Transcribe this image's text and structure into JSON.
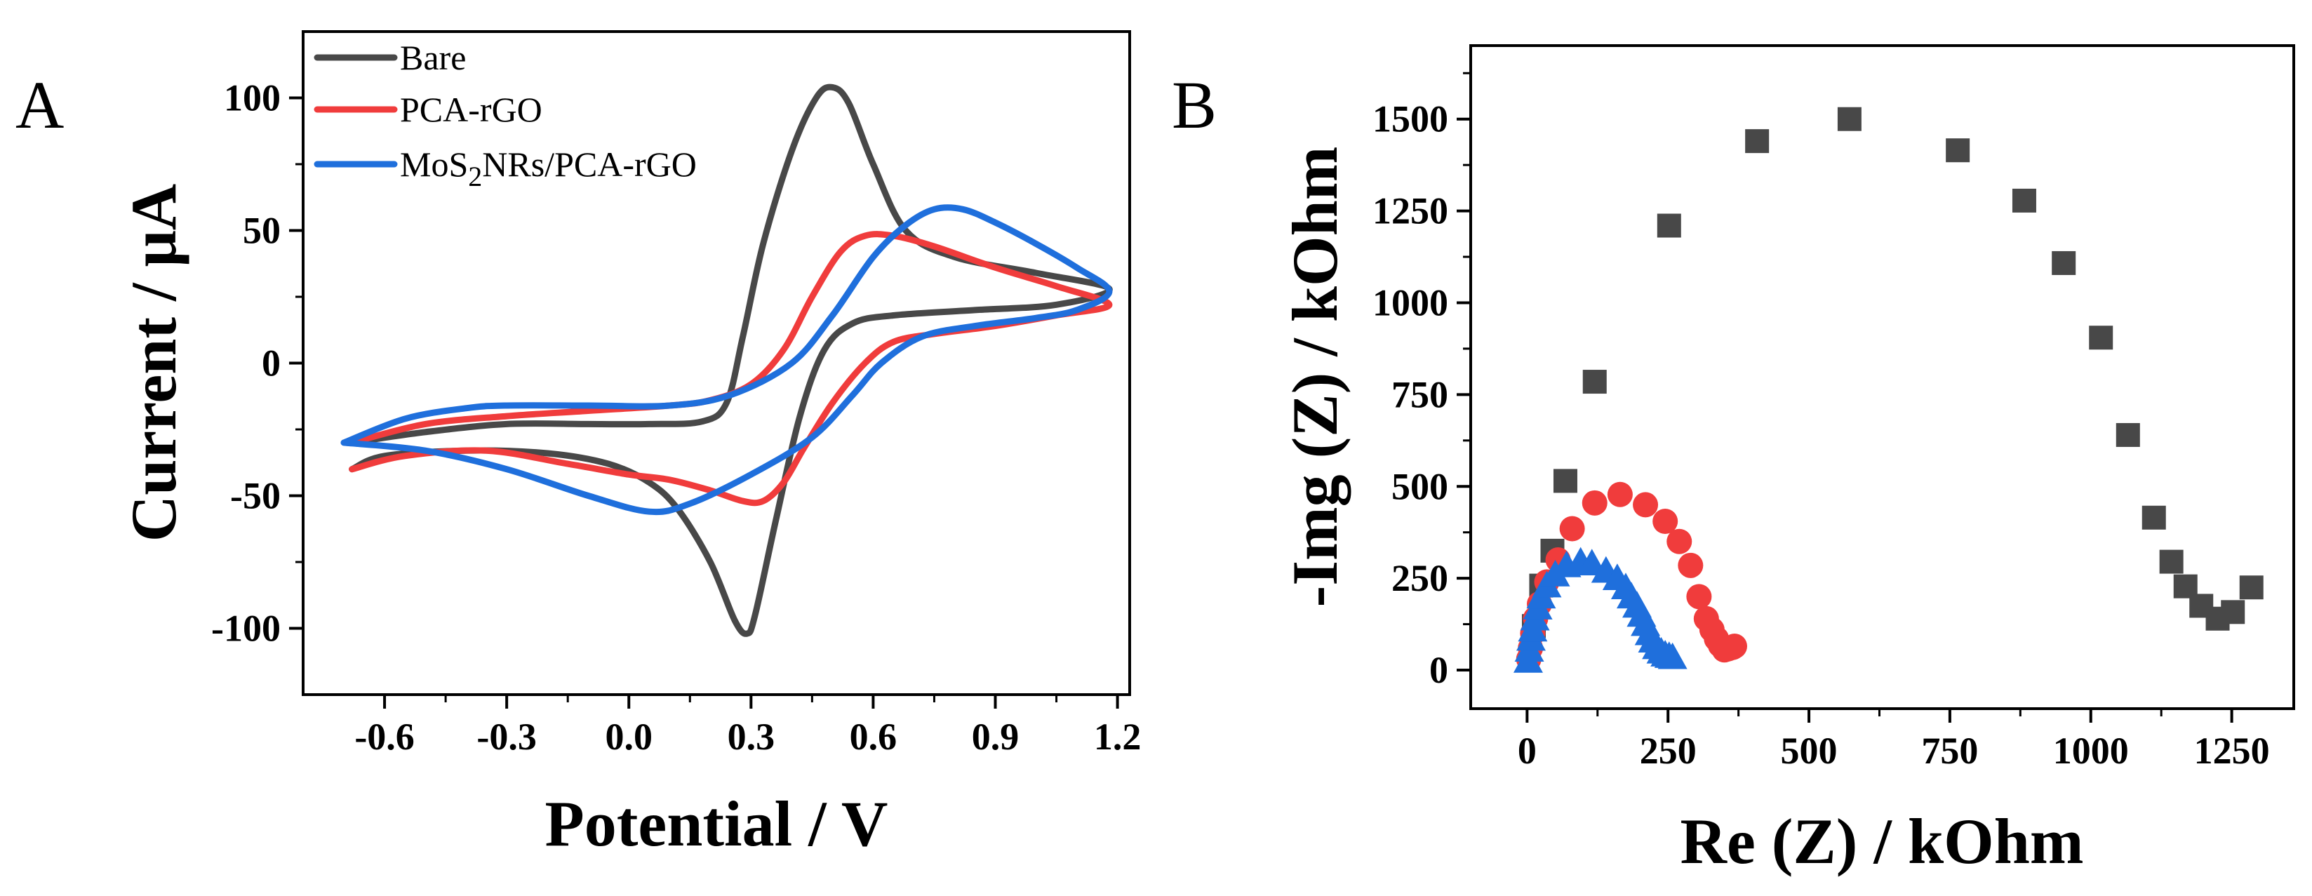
{
  "colors": {
    "bare": "#484848",
    "pca": "#f03c3c",
    "mos2": "#1f6fdc",
    "axis": "#000000"
  },
  "panels": {
    "a": {
      "label": "A"
    },
    "b": {
      "label": "B"
    }
  },
  "chart_data": [
    {
      "type": "line",
      "panel": "A",
      "title": "",
      "xlabel": "Potential / V",
      "ylabel": "Current / μA",
      "xlim": [
        -0.8,
        1.23
      ],
      "ylim": [
        -125,
        125
      ],
      "xticks": [
        -0.6,
        -0.3,
        0.0,
        0.3,
        0.6,
        0.9,
        1.2
      ],
      "xtick_labels": [
        "-0.6",
        "-0.3",
        "0.0",
        "0.3",
        "0.6",
        "0.9",
        "1.2"
      ],
      "yticks": [
        -100,
        -50,
        0,
        50,
        100
      ],
      "ytick_labels": [
        "-100",
        "-50",
        "0",
        "50",
        "100"
      ],
      "legend_position": "top-left",
      "legend": {
        "bare": "Bare",
        "pca": "PCA-rGO",
        "mos2_prefix": "MoS",
        "mos2_sub": "2",
        "mos2_suffix": "NRs/PCA-rGO"
      },
      "series": [
        {
          "name": "Bare",
          "color": "#484848",
          "x": [
            -0.68,
            -0.5,
            -0.3,
            -0.1,
            0.05,
            0.18,
            0.24,
            0.28,
            0.33,
            0.4,
            0.46,
            0.5,
            0.54,
            0.6,
            0.68,
            0.8,
            1.0,
            1.18,
            1.05,
            0.85,
            0.65,
            0.55,
            0.48,
            0.42,
            0.36,
            0.31,
            0.29,
            0.26,
            0.2,
            0.12,
            0.05,
            -0.05,
            -0.2,
            -0.4,
            -0.6,
            -0.68
          ],
          "y": [
            -30,
            -26,
            -23,
            -23,
            -23,
            -22,
            -15,
            10,
            45,
            80,
            100,
            104,
            98,
            75,
            50,
            40,
            34,
            28,
            22,
            20,
            18,
            15,
            5,
            -20,
            -60,
            -95,
            -102,
            -97,
            -75,
            -55,
            -45,
            -38,
            -34,
            -33,
            -35,
            -40
          ]
        },
        {
          "name": "PCA-rGO",
          "color": "#f03c3c",
          "x": [
            -0.68,
            -0.5,
            -0.3,
            -0.1,
            0.1,
            0.2,
            0.3,
            0.38,
            0.45,
            0.52,
            0.58,
            0.65,
            0.75,
            0.9,
            1.05,
            1.18,
            1.05,
            0.9,
            0.75,
            0.65,
            0.58,
            0.5,
            0.43,
            0.38,
            0.33,
            0.28,
            0.2,
            0.1,
            0.0,
            -0.15,
            -0.35,
            -0.55,
            -0.68
          ],
          "y": [
            -30,
            -23,
            -20,
            -18,
            -16,
            -14,
            -8,
            5,
            25,
            42,
            48,
            48,
            44,
            36,
            29,
            22,
            18,
            14,
            11,
            8,
            0,
            -15,
            -32,
            -45,
            -52,
            -52,
            -48,
            -44,
            -42,
            -38,
            -33,
            -35,
            -40
          ]
        },
        {
          "name": "MoS2NRs/PCA-rGO",
          "color": "#1f6fdc",
          "x": [
            -0.7,
            -0.55,
            -0.4,
            -0.3,
            -0.1,
            0.1,
            0.25,
            0.4,
            0.5,
            0.6,
            0.68,
            0.75,
            0.82,
            0.9,
            1.0,
            1.1,
            1.18,
            1.1,
            1.0,
            0.85,
            0.72,
            0.62,
            0.55,
            0.45,
            0.3,
            0.15,
            0.05,
            -0.1,
            -0.3,
            -0.5,
            -0.7
          ],
          "y": [
            -30,
            -21,
            -17,
            -16,
            -16,
            -16,
            -12,
            0,
            18,
            40,
            52,
            58,
            58,
            53,
            45,
            36,
            27,
            20,
            17,
            14,
            10,
            0,
            -12,
            -28,
            -42,
            -53,
            -56,
            -50,
            -40,
            -33,
            -30
          ]
        }
      ]
    },
    {
      "type": "scatter",
      "panel": "B",
      "title": "",
      "xlabel": "Re (Z) / kOhm",
      "ylabel": "-Img (Z) / kOhm",
      "xlim": [
        -100,
        1360
      ],
      "ylim": [
        -105,
        1700
      ],
      "xticks": [
        0,
        250,
        500,
        750,
        1000,
        1250
      ],
      "xtick_labels": [
        "0",
        "250",
        "500",
        "750",
        "1000",
        "1250"
      ],
      "yticks": [
        0,
        250,
        500,
        750,
        1000,
        1250,
        1500
      ],
      "ytick_labels": [
        "0",
        "250",
        "500",
        "750",
        "1000",
        "1250",
        "1500"
      ],
      "grid": false,
      "series": [
        {
          "name": "Bare",
          "marker": "square",
          "color": "#484848",
          "x": [
            12,
            25,
            45,
            68,
            120,
            252,
            408,
            572,
            764,
            882,
            952,
            1018,
            1066,
            1112,
            1143,
            1168,
            1196,
            1225,
            1252,
            1285
          ],
          "y": [
            120,
            230,
            325,
            515,
            785,
            1210,
            1440,
            1500,
            1415,
            1278,
            1108,
            905,
            640,
            415,
            295,
            228,
            175,
            140,
            158,
            225
          ]
        },
        {
          "name": "PCA-rGO",
          "marker": "circle",
          "color": "#f03c3c",
          "x": [
            3,
            6,
            10,
            15,
            22,
            35,
            55,
            80,
            120,
            165,
            210,
            245,
            270,
            290,
            305,
            318,
            328,
            336,
            343,
            350,
            357,
            365,
            368
          ],
          "y": [
            30,
            60,
            100,
            140,
            180,
            240,
            300,
            385,
            455,
            478,
            450,
            405,
            350,
            285,
            200,
            140,
            110,
            85,
            68,
            55,
            58,
            62,
            65
          ]
        },
        {
          "name": "MoS2NRs/PCA-rGO",
          "marker": "triangle",
          "color": "#1f6fdc",
          "x": [
            2,
            4,
            7,
            10,
            14,
            19,
            25,
            35,
            50,
            70,
            95,
            115,
            140,
            160,
            175,
            185,
            195,
            203,
            210,
            217,
            223,
            230,
            238,
            245,
            252,
            258
          ],
          "y": [
            25,
            55,
            85,
            110,
            140,
            170,
            200,
            230,
            260,
            285,
            295,
            290,
            270,
            250,
            225,
            200,
            175,
            150,
            125,
            100,
            80,
            62,
            50,
            42,
            38,
            35
          ]
        }
      ]
    }
  ]
}
